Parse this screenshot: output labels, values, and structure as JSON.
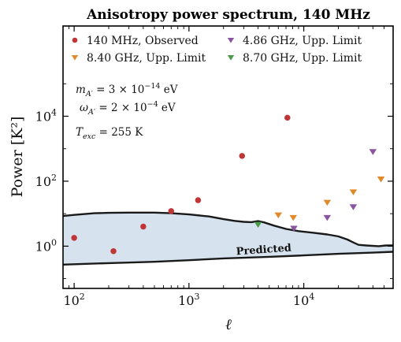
{
  "chart_data": {
    "type": "scatter",
    "title": "Anisotropy power spectrum, 140 MHz",
    "xlabel": "ℓ",
    "ylabel": "Power [K²]",
    "xscale": "log",
    "yscale": "log",
    "xlim": [
      80,
      60000
    ],
    "ylim": [
      0.05,
      6000000
    ],
    "x_ticks": [
      {
        "value": 100,
        "label": "10²"
      },
      {
        "value": 1000,
        "label": "10³"
      },
      {
        "value": 10000,
        "label": "10⁴"
      }
    ],
    "y_ticks": [
      {
        "value": 1,
        "label": "10⁰"
      },
      {
        "value": 100,
        "label": "10²"
      },
      {
        "value": 10000,
        "label": "10⁴"
      }
    ],
    "legend_position": "top",
    "series": [
      {
        "name": "140 MHz, Observed",
        "marker": "circle",
        "color": "#c03636",
        "points": [
          [
            100,
            1.8
          ],
          [
            220,
            0.7
          ],
          [
            400,
            4.0
          ],
          [
            700,
            12
          ],
          [
            1200,
            26
          ],
          [
            2900,
            600
          ],
          [
            7200,
            9000
          ]
        ]
      },
      {
        "name": "4.86 GHz, Upp. Limit",
        "marker": "triangle-down",
        "color": "#8a55a0",
        "points": [
          [
            8200,
            3.5
          ],
          [
            16000,
            7.5
          ],
          [
            27000,
            16
          ],
          [
            40000,
            800
          ]
        ]
      },
      {
        "name": "8.40 GHz, Upp. Limit",
        "marker": "triangle-down",
        "color": "#e08a2c",
        "points": [
          [
            6000,
            9.0
          ],
          [
            8100,
            7.5
          ],
          [
            16000,
            22
          ],
          [
            27000,
            46
          ],
          [
            47000,
            115
          ]
        ]
      },
      {
        "name": "8.70 GHz, Upp. Limit",
        "marker": "triangle-down",
        "color": "#4c9a4c",
        "points": [
          [
            4000,
            4.6
          ]
        ]
      }
    ],
    "predicted_band": {
      "label": "Predicted",
      "fill_color": "#d6e3ee",
      "upper": [
        [
          80,
          8.5
        ],
        [
          100,
          9.2
        ],
        [
          150,
          10.3
        ],
        [
          200,
          10.6
        ],
        [
          300,
          10.8
        ],
        [
          500,
          10.8
        ],
        [
          700,
          10.3
        ],
        [
          1000,
          9.5
        ],
        [
          1500,
          8.2
        ],
        [
          2000,
          6.8
        ],
        [
          2500,
          6.0
        ],
        [
          3000,
          5.6
        ],
        [
          3500,
          5.5
        ],
        [
          4000,
          5.9
        ],
        [
          4500,
          5.4
        ],
        [
          5500,
          4.3
        ],
        [
          7000,
          3.4
        ],
        [
          9000,
          2.9
        ],
        [
          12000,
          2.6
        ],
        [
          16000,
          2.3
        ],
        [
          20000,
          2.0
        ],
        [
          24000,
          1.6
        ],
        [
          27000,
          1.3
        ],
        [
          30000,
          1.1
        ],
        [
          35000,
          1.05
        ],
        [
          45000,
          1.0
        ],
        [
          52000,
          1.05
        ],
        [
          60000,
          1.05
        ]
      ],
      "lower": [
        [
          80,
          0.27
        ],
        [
          200,
          0.3
        ],
        [
          500,
          0.33
        ],
        [
          1000,
          0.37
        ],
        [
          2000,
          0.42
        ],
        [
          5000,
          0.47
        ],
        [
          10000,
          0.52
        ],
        [
          20000,
          0.58
        ],
        [
          40000,
          0.63
        ],
        [
          60000,
          0.67
        ]
      ]
    },
    "annotations": [
      {
        "base": "m",
        "sub": "A′",
        "value": " = 3 × 10",
        "exp": "−14",
        "unit": " eV"
      },
      {
        "base": "ω",
        "sub": "A′",
        "value": " = 2 × 10",
        "exp": "−4",
        "unit": " eV"
      },
      {
        "base": "T",
        "sub": "exc",
        "value": " = 255 K",
        "exp": "",
        "unit": ""
      }
    ]
  }
}
